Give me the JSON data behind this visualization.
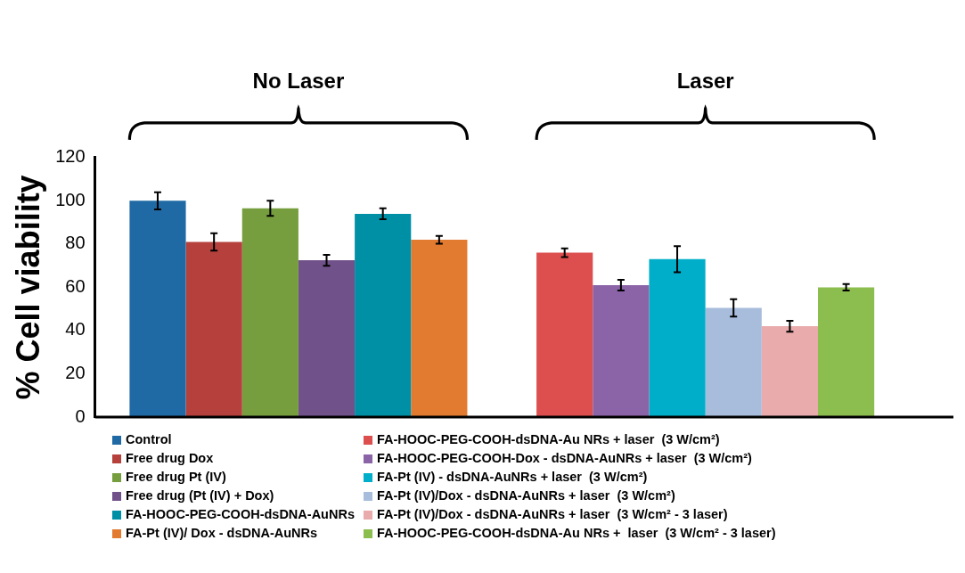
{
  "chart_data": {
    "type": "bar",
    "ylabel": "% Cell viability",
    "categories": [
      "No Laser",
      "Laser"
    ],
    "ylim": [
      0,
      120
    ],
    "yticks": [
      0,
      20,
      40,
      60,
      80,
      100,
      120
    ],
    "grid": false,
    "legend": "bottom",
    "stacked": false,
    "series": [
      {
        "name": "Control",
        "color": "#1f6aa5",
        "values": [
          100,
          null
        ],
        "errors": [
          4,
          null
        ]
      },
      {
        "name": "Free drug Dox",
        "color": "#b5403c",
        "values": [
          81,
          null
        ],
        "errors": [
          4,
          null
        ]
      },
      {
        "name": "Free drug Pt (IV)",
        "color": "#769e3f",
        "values": [
          96.5,
          null
        ],
        "errors": [
          3.5,
          null
        ]
      },
      {
        "name": "Free drug (Pt (IV) + Dox)",
        "color": "#71518a",
        "values": [
          72.5,
          null
        ],
        "errors": [
          2.5,
          null
        ]
      },
      {
        "name": "FA-HOOC-PEG-COOH-dsDNA-AuNRs",
        "color": "#0090a6",
        "values": [
          94,
          null
        ],
        "errors": [
          2.5,
          null
        ]
      },
      {
        "name": "FA-Pt (IV)/ Dox - dsDNA-AuNRs",
        "color": "#e27b30",
        "values": [
          82,
          null
        ],
        "errors": [
          1.8,
          null
        ]
      },
      {
        "name": "FA-HOOC-PEG-COOH-dsDNA-Au NRs + laser  (3 W/cm²)",
        "color": "#dc4f4e",
        "values": [
          null,
          76
        ],
        "errors": [
          null,
          2
        ]
      },
      {
        "name": "FA-HOOC-PEG-COOH-Dox - dsDNA-AuNRs + laser  (3 W/cm²)",
        "color": "#8b64a7",
        "values": [
          null,
          61
        ],
        "errors": [
          null,
          2.5
        ]
      },
      {
        "name": "FA-Pt (IV) - dsDNA-AuNRs + laser  (3 W/cm²)",
        "color": "#00aec9",
        "values": [
          null,
          73
        ],
        "errors": [
          null,
          6
        ]
      },
      {
        "name": "FA-Pt (IV)/Dox - dsDNA-AuNRs + laser  (3 W/cm²)",
        "color": "#a8bcdc",
        "values": [
          null,
          50.5
        ],
        "errors": [
          null,
          4
        ]
      },
      {
        "name": "FA-Pt (IV)/Dox - dsDNA-AuNRs + laser  (3 W/cm² - 3 laser)",
        "color": "#e9abab",
        "values": [
          null,
          42
        ],
        "errors": [
          null,
          2.5
        ]
      },
      {
        "name": "FA-HOOC-PEG-COOH-dsDNA-Au NRs +  laser  (3 W/cm² - 3 laser)",
        "color": "#8cbd4f",
        "values": [
          null,
          60
        ],
        "errors": [
          null,
          1.5
        ]
      }
    ]
  }
}
